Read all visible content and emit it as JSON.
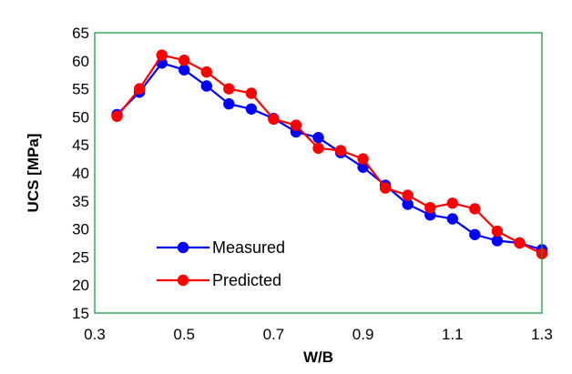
{
  "chart_data": {
    "type": "line",
    "title": "",
    "xlabel": "W/B",
    "ylabel": "UCS [MPa]",
    "xlim": [
      0.3,
      1.3
    ],
    "ylim": [
      15,
      65
    ],
    "xticks": [
      "0.3",
      "0.5",
      "0.7",
      "0.9",
      "1.1",
      "1.3"
    ],
    "yticks": [
      "15",
      "20",
      "25",
      "30",
      "35",
      "40",
      "45",
      "50",
      "55",
      "60",
      "65"
    ],
    "grid": false,
    "plot_border_color": "#1a9e3c",
    "legend_position": "bottom-left",
    "series": [
      {
        "name": "Measured",
        "color": "#0000ff",
        "x": [
          0.35,
          0.4,
          0.45,
          0.5,
          0.55,
          0.6,
          0.65,
          0.7,
          0.75,
          0.8,
          0.85,
          0.9,
          0.95,
          1.0,
          1.05,
          1.1,
          1.15,
          1.2,
          1.25,
          1.3
        ],
        "y": [
          50.4,
          54.4,
          59.6,
          58.4,
          55.5,
          52.3,
          51.4,
          49.7,
          47.3,
          46.3,
          43.6,
          41.0,
          37.8,
          34.4,
          32.5,
          31.8,
          29.0,
          27.9,
          27.5,
          26.3
        ]
      },
      {
        "name": "Predicted",
        "color": "#ff0000",
        "x": [
          0.35,
          0.4,
          0.45,
          0.5,
          0.55,
          0.6,
          0.65,
          0.7,
          0.75,
          0.8,
          0.85,
          0.9,
          0.95,
          1.0,
          1.05,
          1.1,
          1.15,
          1.2,
          1.25,
          1.3
        ],
        "y": [
          50.1,
          55.0,
          61.0,
          60.1,
          58.0,
          55.0,
          54.2,
          49.6,
          48.5,
          44.4,
          44.0,
          42.5,
          37.3,
          36.0,
          33.8,
          34.6,
          33.6,
          29.6,
          27.5,
          25.6
        ]
      }
    ]
  }
}
